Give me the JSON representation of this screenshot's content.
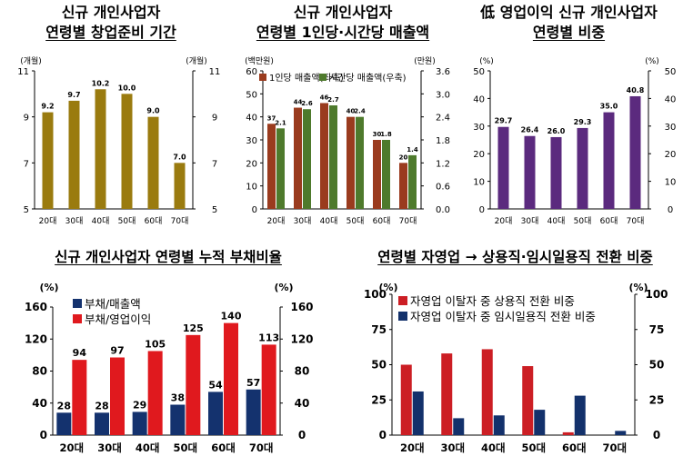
{
  "chart_data": [
    {
      "type": "bar",
      "title_lines": [
        "신규 개인사업자",
        "연령별 창업준비 기간"
      ],
      "categories": [
        "20대",
        "30대",
        "40대",
        "50대",
        "60대",
        "70대"
      ],
      "series": [
        {
          "values": [
            9.2,
            9.7,
            10.2,
            10.0,
            9.0,
            7.0
          ],
          "color": "#9a7b0f"
        }
      ],
      "left_unit": "(개월)",
      "right_unit": "(개월)",
      "ylim": [
        5,
        11
      ],
      "yticks": [
        5,
        7,
        9,
        11
      ],
      "grid": false
    },
    {
      "type": "bar",
      "title_lines": [
        "신규 개인사업자",
        "연령별 1인당·시간당 매출액"
      ],
      "categories": [
        "20대",
        "30대",
        "40대",
        "50대",
        "60대",
        "70대"
      ],
      "series": [
        {
          "name": "1인당 매출액(좌축)",
          "values": [
            37,
            44,
            46,
            40,
            30,
            20
          ],
          "color": "#9a3b1e",
          "axis": "left"
        },
        {
          "name": "시간당 매출액(우축)",
          "values": [
            2.1,
            2.6,
            2.7,
            2.4,
            1.8,
            1.4
          ],
          "color": "#4e7a2c",
          "axis": "right"
        }
      ],
      "left_unit": "(백만원)",
      "right_unit": "(만원)",
      "ylim": [
        0,
        60
      ],
      "yticks": [
        0,
        10,
        20,
        30,
        40,
        50,
        60
      ],
      "y2lim": [
        0,
        3.6
      ],
      "y2ticks": [
        "0.0",
        "0.6",
        "1.2",
        "1.8",
        "2.4",
        "3.0",
        "3.6"
      ],
      "legend": "top-left",
      "grid": false
    },
    {
      "type": "bar",
      "title_lines": [
        "低 영업이익 신규 개인사업자",
        "연령별 비중"
      ],
      "categories": [
        "20대",
        "30대",
        "40대",
        "50대",
        "60대",
        "70대"
      ],
      "series": [
        {
          "values": [
            29.7,
            26.4,
            26.0,
            29.3,
            35.0,
            40.8
          ],
          "color": "#5b2a7e"
        }
      ],
      "left_unit": "(%)",
      "right_unit": "(%)",
      "ylim": [
        0,
        50
      ],
      "yticks": [
        0,
        10,
        20,
        30,
        40,
        50
      ],
      "grid": false
    },
    {
      "type": "bar",
      "title_lines": [
        "신규 개인사업자 연령별 누적 부채비율"
      ],
      "categories": [
        "20대",
        "30대",
        "40대",
        "50대",
        "60대",
        "70대"
      ],
      "series": [
        {
          "name": "부채/매출액",
          "values": [
            28,
            28,
            29,
            38,
            54,
            57
          ],
          "color": "#14326e"
        },
        {
          "name": "부채/영업이익",
          "values": [
            94,
            97,
            105,
            125,
            140,
            113
          ],
          "color": "#e0191e"
        }
      ],
      "left_unit": "(%)",
      "right_unit": "(%)",
      "ylim": [
        0,
        160
      ],
      "yticks": [
        0,
        40,
        80,
        120,
        160
      ],
      "legend": "top-left",
      "grid": false
    },
    {
      "type": "bar",
      "title_lines": [
        "연령별 자영업 → 상용직·임시일용직 전환 비중"
      ],
      "categories": [
        "20대",
        "30대",
        "40대",
        "50대",
        "60대",
        "70대"
      ],
      "series": [
        {
          "name": "자영업 이탈자 중 상용직 전환 비중",
          "values": [
            50,
            58,
            61,
            49,
            2,
            0
          ],
          "color": "#cc1e24"
        },
        {
          "name": "자영업 이탈자 중 임시일용직 전환 비중",
          "values": [
            31,
            12,
            14,
            18,
            28,
            3
          ],
          "color": "#13316b"
        }
      ],
      "left_unit": "(%)",
      "right_unit": "(%)",
      "ylim": [
        0,
        100
      ],
      "yticks": [
        0,
        25,
        50,
        75,
        100
      ],
      "legend": "top-left",
      "grid": false
    }
  ]
}
